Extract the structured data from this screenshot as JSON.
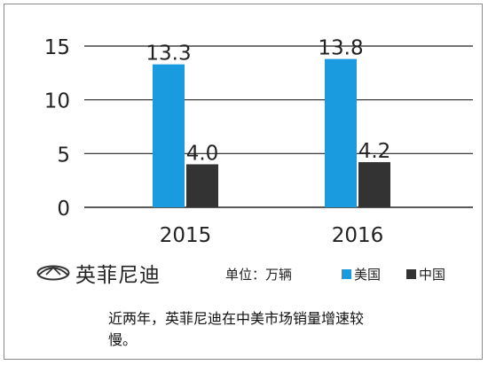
{
  "chart_data": {
    "type": "bar",
    "categories": [
      "2015",
      "2016"
    ],
    "series": [
      {
        "name": "美国",
        "values": [
          13.3,
          13.8
        ],
        "color": "#1a9be0"
      },
      {
        "name": "中国",
        "values": [
          4.0,
          4.2
        ],
        "color": "#333333"
      }
    ],
    "value_labels": [
      [
        "13.3",
        "13.8"
      ],
      [
        "4.0",
        "4.2"
      ]
    ],
    "yticks": [
      0,
      5,
      10,
      15
    ],
    "ylim": [
      0,
      16
    ],
    "grid": true,
    "legend_position": "bottom-right"
  },
  "brand": {
    "name": "英菲尼迪",
    "icon": "infiniti-logo-icon"
  },
  "unit_label": "单位：万辆",
  "caption": "近两年，英菲尼迪在中美市场销量增速较慢。"
}
